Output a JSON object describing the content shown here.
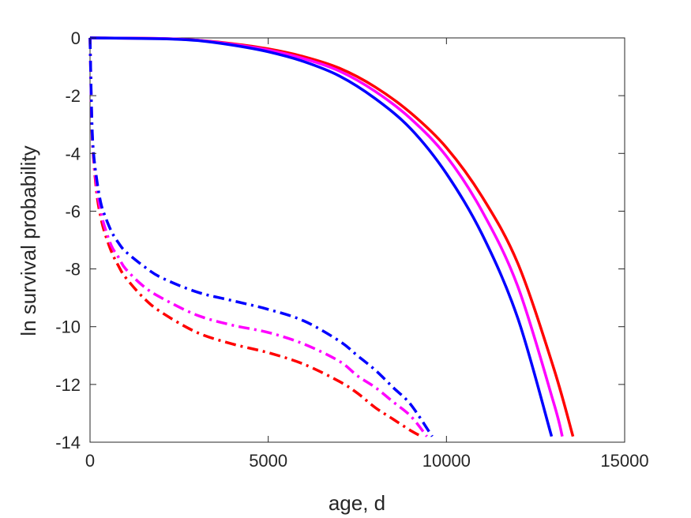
{
  "chart_data": {
    "type": "line",
    "title": "",
    "xlabel": "age, d",
    "ylabel": "ln survival probability",
    "xlim": [
      0,
      15000
    ],
    "ylim": [
      -14,
      0
    ],
    "xticks": [
      0,
      5000,
      10000,
      15000
    ],
    "xtick_labels": [
      "0",
      "5000",
      "10000",
      "15000"
    ],
    "yticks": [
      0,
      -2,
      -4,
      -6,
      -8,
      -10,
      -12,
      -14
    ],
    "ytick_labels": [
      "0",
      "-2",
      "-4",
      "-6",
      "-8",
      "-10",
      "-12",
      "-14"
    ],
    "grid": false,
    "legend": "none",
    "series": [
      {
        "color": "#ff0000",
        "style": "solid",
        "x": [
          0,
          2000,
          3000,
          4000,
          5000,
          6000,
          7000,
          8000,
          9000,
          10000,
          11000,
          12000,
          13000,
          13550
        ],
        "y": [
          0,
          -0.02,
          -0.08,
          -0.2,
          -0.38,
          -0.65,
          -1.05,
          -1.7,
          -2.6,
          -3.8,
          -5.5,
          -7.8,
          -11.4,
          -13.8
        ]
      },
      {
        "color": "#ff00ff",
        "style": "solid",
        "x": [
          0,
          2000,
          3000,
          4000,
          5000,
          6000,
          7000,
          8000,
          9000,
          10000,
          11000,
          12000,
          13000,
          13250
        ],
        "y": [
          0,
          -0.02,
          -0.08,
          -0.22,
          -0.42,
          -0.72,
          -1.15,
          -1.85,
          -2.8,
          -4.1,
          -6.0,
          -8.6,
          -12.6,
          -13.8
        ]
      },
      {
        "color": "#0000ff",
        "style": "solid",
        "x": [
          0,
          2000,
          3000,
          4000,
          5000,
          6000,
          7000,
          8000,
          9000,
          10000,
          11000,
          12000,
          12950
        ],
        "y": [
          0,
          -0.03,
          -0.09,
          -0.25,
          -0.48,
          -0.82,
          -1.32,
          -2.1,
          -3.15,
          -4.7,
          -6.8,
          -9.7,
          -13.8
        ]
      },
      {
        "color": "#ff0000",
        "style": "dashdot",
        "x": [
          0,
          50,
          100,
          200,
          300,
          400,
          600,
          800,
          1000,
          1500,
          2000,
          3000,
          4000,
          5000,
          6000,
          7000,
          7500,
          8000,
          8500,
          9000,
          9300
        ],
        "y": [
          0,
          -3.0,
          -4.2,
          -5.5,
          -6.2,
          -6.7,
          -7.4,
          -7.9,
          -8.3,
          -9.0,
          -9.5,
          -10.2,
          -10.6,
          -10.9,
          -11.3,
          -11.9,
          -12.3,
          -12.8,
          -13.2,
          -13.6,
          -13.8
        ]
      },
      {
        "color": "#ff00ff",
        "style": "dashdot",
        "x": [
          0,
          50,
          100,
          200,
          300,
          400,
          600,
          800,
          1000,
          1500,
          2000,
          3000,
          4000,
          5000,
          6000,
          7000,
          7500,
          8000,
          8500,
          9000,
          9450
        ],
        "y": [
          0,
          -2.9,
          -4.1,
          -5.3,
          -6.0,
          -6.5,
          -7.2,
          -7.6,
          -8.0,
          -8.6,
          -9.0,
          -9.6,
          -9.95,
          -10.2,
          -10.6,
          -11.2,
          -11.7,
          -12.1,
          -12.6,
          -13.1,
          -13.8
        ]
      },
      {
        "color": "#0000ff",
        "style": "dashdot",
        "x": [
          0,
          50,
          100,
          200,
          300,
          400,
          600,
          800,
          1000,
          1500,
          2000,
          3000,
          4000,
          5000,
          6000,
          7000,
          7500,
          8000,
          8500,
          9000,
          9600
        ],
        "y": [
          0,
          -2.8,
          -4.0,
          -5.0,
          -5.7,
          -6.1,
          -6.7,
          -7.1,
          -7.4,
          -7.9,
          -8.3,
          -8.8,
          -9.1,
          -9.4,
          -9.8,
          -10.5,
          -11.0,
          -11.5,
          -12.1,
          -12.7,
          -13.8
        ]
      }
    ]
  }
}
